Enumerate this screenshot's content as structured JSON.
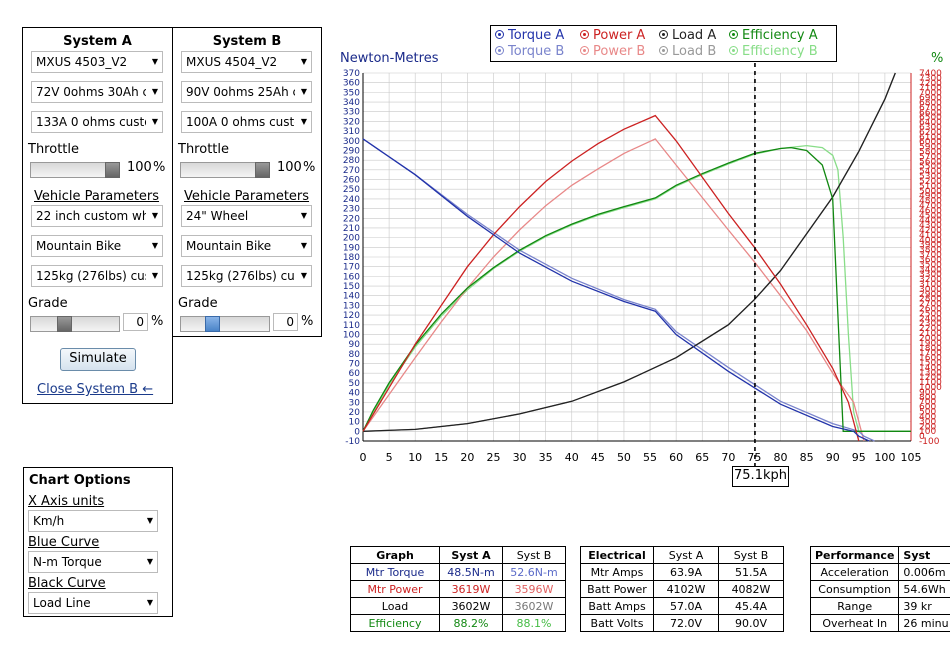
{
  "systemA": {
    "title": "System A",
    "motor": "MXUS 4503_V2",
    "battery": "72V 0ohms 30Ah c",
    "controller": "133A 0 ohms custo",
    "throttle_label": "Throttle",
    "throttle_value": "100",
    "throttle_unit": "%",
    "vehicle_params_label": "Vehicle Parameters",
    "wheel": "22 inch custom wh",
    "bike": "Mountain Bike",
    "weight": "125kg (276lbs) cus",
    "grade_label": "Grade",
    "grade_value": "0",
    "grade_unit": "%",
    "simulate_label": "Simulate",
    "close_label": "Close System B ←"
  },
  "systemB": {
    "title": "System B",
    "motor": "MXUS 4504_V2",
    "battery": "90V 0ohms 25Ah c",
    "controller": "100A 0 ohms custo",
    "throttle_label": "Throttle",
    "throttle_value": "100",
    "throttle_unit": "%",
    "vehicle_params_label": "Vehicle Parameters",
    "wheel": "24\"  Wheel",
    "bike": "Mountain Bike",
    "weight": "125kg (276lbs) cus",
    "grade_label": "Grade",
    "grade_value": "0",
    "grade_unit": "%"
  },
  "chartOptions": {
    "title": "Chart Options",
    "x_units_label": "X Axis units",
    "x_units_value": "Km/h",
    "blue_label": "Blue Curve",
    "blue_value": "N-m Torque",
    "black_label": "Black Curve",
    "black_value": "Load Line"
  },
  "legend": {
    "row1": [
      "Torque A",
      "Power A",
      "Load A",
      "Efficiency A"
    ],
    "row2": [
      "Torque B",
      "Power B",
      "Load B",
      "Efficiency B"
    ]
  },
  "cursor_label": "75.1kph",
  "colors": {
    "torqueA": "#2233aa",
    "torqueB": "#7a84cc",
    "powerA": "#cc2222",
    "powerB": "#e88888",
    "loadA": "#222222",
    "loadB": "#999999",
    "effA": "#118811",
    "effB": "#88dd88",
    "rightAxis": "#cc2222"
  },
  "chart_data": {
    "type": "line",
    "xlabel": "",
    "ylabel": "Newton-Metres",
    "ylabel_right": "%",
    "xlim": [
      0,
      105
    ],
    "ylim": [
      -10,
      370
    ],
    "ylim_right": [
      -100,
      7400
    ],
    "x_ticks": [
      0,
      5,
      10,
      15,
      20,
      25,
      30,
      35,
      40,
      45,
      50,
      55,
      60,
      65,
      70,
      75,
      80,
      85,
      90,
      95,
      100,
      105
    ],
    "y_ticks": [
      -10,
      0,
      10,
      20,
      30,
      40,
      50,
      60,
      70,
      80,
      90,
      100,
      110,
      120,
      130,
      140,
      150,
      160,
      170,
      180,
      190,
      200,
      210,
      220,
      230,
      240,
      250,
      260,
      270,
      280,
      290,
      300,
      310,
      320,
      330,
      340,
      350,
      360,
      370
    ],
    "y_right_ticks": [
      -100,
      0,
      100,
      200,
      300,
      400,
      500,
      600,
      700,
      800,
      900,
      1000,
      1100,
      1200,
      1300,
      1400,
      1500,
      1600,
      1700,
      1800,
      1900,
      2000,
      2100,
      2200,
      2300,
      2400,
      2500,
      2600,
      2700,
      2800,
      2900,
      3000,
      3100,
      3200,
      3300,
      3400,
      3500,
      3600,
      3700,
      3800,
      3900,
      4000,
      4100,
      4200,
      4300,
      4400,
      4500,
      4600,
      4700,
      4800,
      4900,
      5000,
      5100,
      5200,
      5300,
      5400,
      5500,
      5600,
      5700,
      5800,
      5900,
      6000,
      6100,
      6200,
      6300,
      6400,
      6500,
      6600,
      6700,
      6800,
      6900,
      7000,
      7100,
      7200,
      7300,
      7400
    ],
    "cursor_x": 75.1,
    "grid": true,
    "series": [
      {
        "name": "Torque A",
        "x": [
          0,
          10,
          20,
          30,
          40,
          50,
          56,
          60,
          70,
          80,
          90,
          94,
          95,
          97
        ],
        "y": [
          302,
          265,
          222,
          184,
          155,
          134,
          124,
          100,
          62,
          28,
          5,
          0,
          -5,
          -10
        ]
      },
      {
        "name": "Torque B",
        "x": [
          0,
          10,
          20,
          30,
          40,
          50,
          56,
          60,
          70,
          80,
          90,
          95,
          96,
          98
        ],
        "y": [
          302,
          265,
          224,
          187,
          158,
          136,
          126,
          103,
          66,
          31,
          8,
          0,
          -5,
          -10
        ]
      },
      {
        "name": "Power A",
        "x": [
          0,
          5,
          10,
          15,
          20,
          25,
          30,
          35,
          40,
          45,
          50,
          56,
          60,
          70,
          75,
          80,
          85,
          90,
          93,
          95
        ],
        "y": [
          0,
          45,
          90,
          130,
          170,
          203,
          232,
          258,
          279,
          297,
          312,
          326,
          300,
          225,
          190,
          152,
          110,
          65,
          30,
          -10
        ]
      },
      {
        "name": "Power B",
        "x": [
          0,
          5,
          10,
          15,
          20,
          25,
          30,
          35,
          40,
          45,
          50,
          56,
          60,
          70,
          75,
          80,
          85,
          90,
          94,
          96
        ],
        "y": [
          0,
          38,
          76,
          113,
          148,
          180,
          208,
          233,
          254,
          271,
          287,
          302,
          275,
          208,
          175,
          140,
          104,
          60,
          30,
          -10
        ]
      },
      {
        "name": "Load A",
        "x": [
          0,
          10,
          20,
          30,
          40,
          50,
          60,
          70,
          75,
          80,
          90,
          95,
          100,
          102
        ],
        "y": [
          0,
          2,
          8,
          18,
          31,
          51,
          76,
          110,
          136,
          166,
          242,
          289,
          343,
          370
        ]
      },
      {
        "name": "Load B",
        "x": [
          0,
          10,
          20,
          30,
          40,
          50,
          60,
          70,
          75,
          80,
          90,
          95,
          100,
          102
        ],
        "y": [
          0,
          2,
          8,
          18,
          31,
          51,
          76,
          110,
          136,
          166,
          242,
          289,
          343,
          370
        ]
      },
      {
        "name": "Efficiency A",
        "x": [
          0,
          2,
          5,
          10,
          15,
          20,
          25,
          30,
          35,
          40,
          45,
          50,
          56,
          60,
          65,
          70,
          75,
          80,
          82,
          85,
          88,
          90,
          91,
          92,
          94,
          100,
          105
        ],
        "y": [
          0,
          22,
          50,
          89,
          121,
          148,
          169,
          187,
          202,
          214,
          224,
          232,
          241,
          254,
          266,
          277,
          287,
          292,
          293,
          290,
          275,
          240,
          120,
          0,
          0,
          0,
          0
        ]
      },
      {
        "name": "Efficiency B",
        "x": [
          0,
          2,
          5,
          10,
          15,
          20,
          25,
          30,
          35,
          40,
          45,
          50,
          56,
          60,
          65,
          70,
          75,
          80,
          85,
          88,
          90,
          91,
          92,
          93,
          94,
          95,
          100,
          105
        ],
        "y": [
          0,
          20,
          48,
          87,
          119,
          146,
          168,
          186,
          201,
          213,
          223,
          231,
          240,
          253,
          265,
          276,
          286,
          292,
          295,
          293,
          285,
          270,
          200,
          100,
          20,
          0,
          0,
          0
        ]
      }
    ]
  },
  "results_graph": {
    "headers": [
      "Graph",
      "Syst A",
      "Syst B"
    ],
    "rows": [
      [
        "Mtr Torque",
        "48.5N-m",
        "52.6N-m"
      ],
      [
        "Mtr Power",
        "3619W",
        "3596W"
      ],
      [
        "Load",
        "3602W",
        "3602W"
      ],
      [
        "Efficiency",
        "88.2%",
        "88.1%"
      ]
    ]
  },
  "results_elec": {
    "headers": [
      "Electrical",
      "Syst A",
      "Syst B"
    ],
    "rows": [
      [
        "Mtr Amps",
        "63.9A",
        "51.5A"
      ],
      [
        "Batt Power",
        "4102W",
        "4082W"
      ],
      [
        "Batt Amps",
        "57.0A",
        "45.4A"
      ],
      [
        "Batt Volts",
        "72.0V",
        "90.0V"
      ]
    ]
  },
  "results_perf": {
    "headers": [
      "Performance",
      "Syst"
    ],
    "rows": [
      [
        "Acceleration",
        "0.006m"
      ],
      [
        "Consumption",
        "54.6Wh"
      ],
      [
        "Range",
        "39 kr"
      ],
      [
        "Overheat In",
        "26 minu"
      ]
    ]
  }
}
